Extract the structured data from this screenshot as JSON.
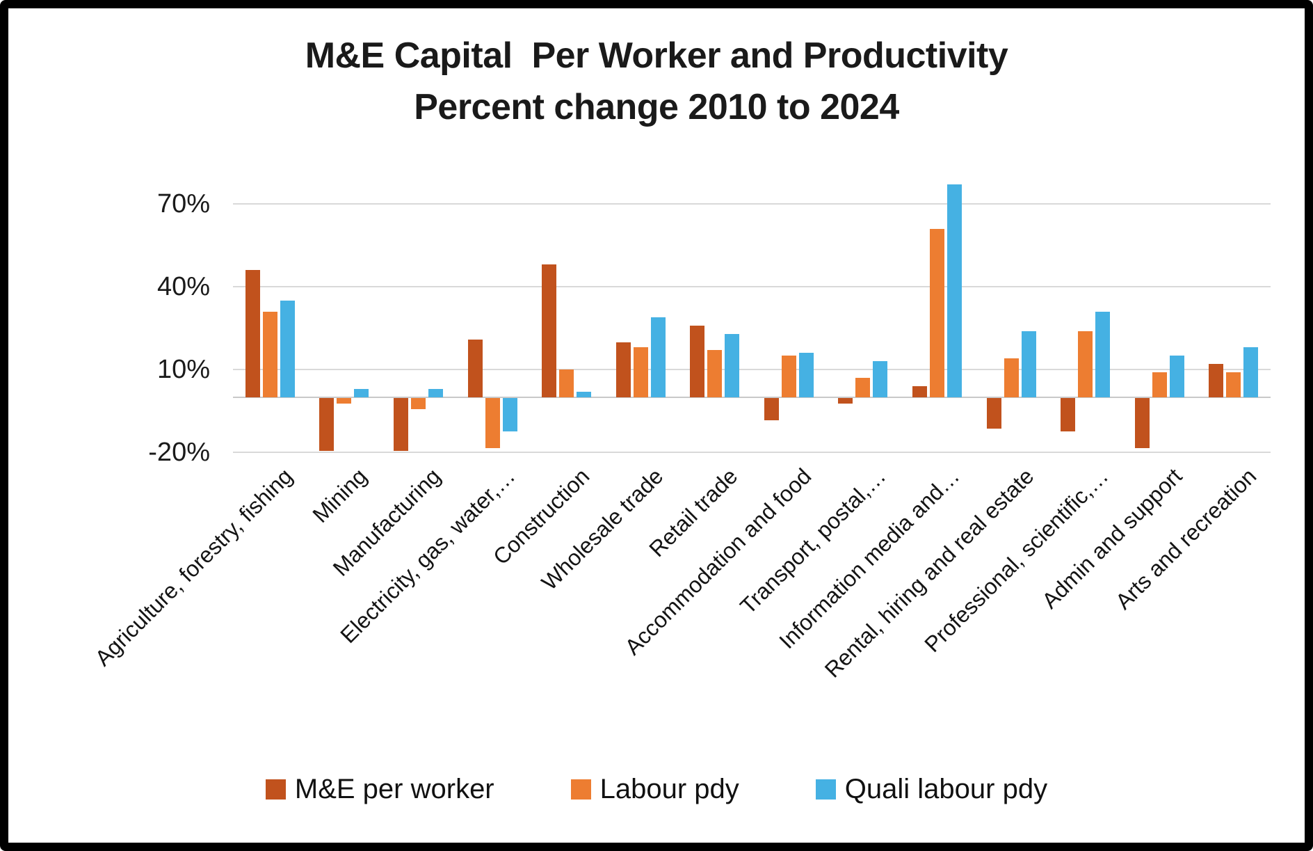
{
  "title": {
    "line1": "M&E Capital  Per Worker and Productivity",
    "line2": "Percent change 2010 to 2024"
  },
  "y_axis": {
    "tick_labels": [
      "70%",
      "40%",
      "10%",
      "-20%"
    ]
  },
  "legend": {
    "items": [
      "M&E per worker",
      "Labour pdy",
      "Quali labour pdy"
    ]
  },
  "colors": {
    "series_me": "#C1521D",
    "series_labour": "#ED7D31",
    "series_quali": "#45B1E3",
    "gridline": "#D9D9D9",
    "zero_line": "#C9C9C9",
    "text": "#1A1A1A",
    "frame": "#000000",
    "background": "#FFFFFF"
  },
  "chart_data": {
    "type": "bar",
    "title": "M&E Capital  Per Worker and Productivity",
    "subtitle": "Percent change 2010 to 2024",
    "unit": "%",
    "categories": [
      "Agriculture, forestry, fishing",
      "Mining",
      "Manufacturing",
      "Electricity, gas, water,…",
      "Construction",
      "Wholesale trade",
      "Retail trade",
      "Accommodation and food",
      "Transport, postal,…",
      "Information media and…",
      "Rental, hiring and real estate",
      "Professional, scientific,…",
      "Admin and support",
      "Arts and recreation"
    ],
    "series": [
      {
        "name": "M&E per worker",
        "color": "#C1521D",
        "values": [
          46,
          -19,
          -19,
          21,
          48,
          20,
          26,
          -8,
          -2,
          4,
          -11,
          -12,
          -18,
          12
        ]
      },
      {
        "name": "Labour pdy",
        "color": "#ED7D31",
        "values": [
          31,
          -2,
          -4,
          -18,
          10,
          18,
          17,
          15,
          7,
          61,
          14,
          24,
          9,
          9
        ]
      },
      {
        "name": "Quali labour pdy",
        "color": "#45B1E3",
        "values": [
          35,
          3,
          3,
          -12,
          2,
          29,
          23,
          16,
          13,
          77,
          24,
          31,
          15,
          18
        ]
      }
    ],
    "y_ticks": [
      70,
      40,
      10,
      -20
    ],
    "ylim": [
      -27,
      80
    ],
    "grid": true,
    "legend_position": "bottom"
  }
}
